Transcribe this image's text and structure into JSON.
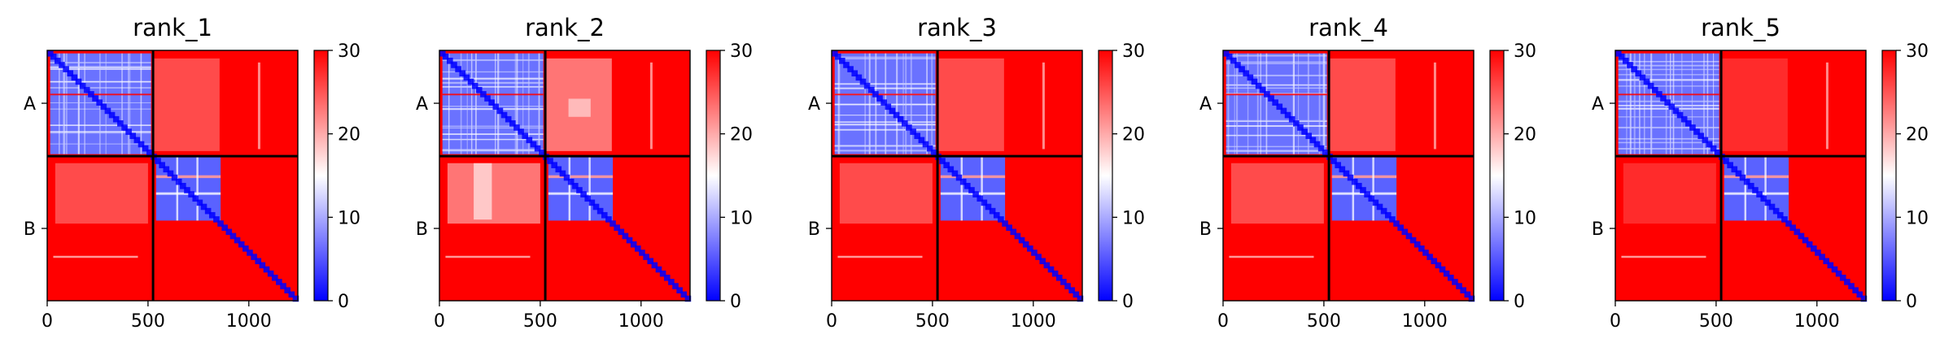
{
  "chart_data": {
    "type": "heatmap",
    "colormap": "bwr",
    "colors": {
      "low": "#0000ff",
      "mid": "#ffffff",
      "high": "#ff0000",
      "divider": "#000000"
    },
    "x_ticks": [
      0,
      500,
      1000
    ],
    "xlim": [
      0,
      1243
    ],
    "chains": [
      {
        "label": "A",
        "start": 0,
        "end": 525
      },
      {
        "label": "B",
        "start": 525,
        "end": 1243
      }
    ],
    "colorbar": {
      "vmin": 0,
      "vmax": 30,
      "ticks": [
        0,
        10,
        20,
        30
      ]
    },
    "panels": [
      {
        "title": "rank_1"
      },
      {
        "title": "rank_2"
      },
      {
        "title": "rank_3"
      },
      {
        "title": "rank_4"
      },
      {
        "title": "rank_5"
      }
    ]
  }
}
